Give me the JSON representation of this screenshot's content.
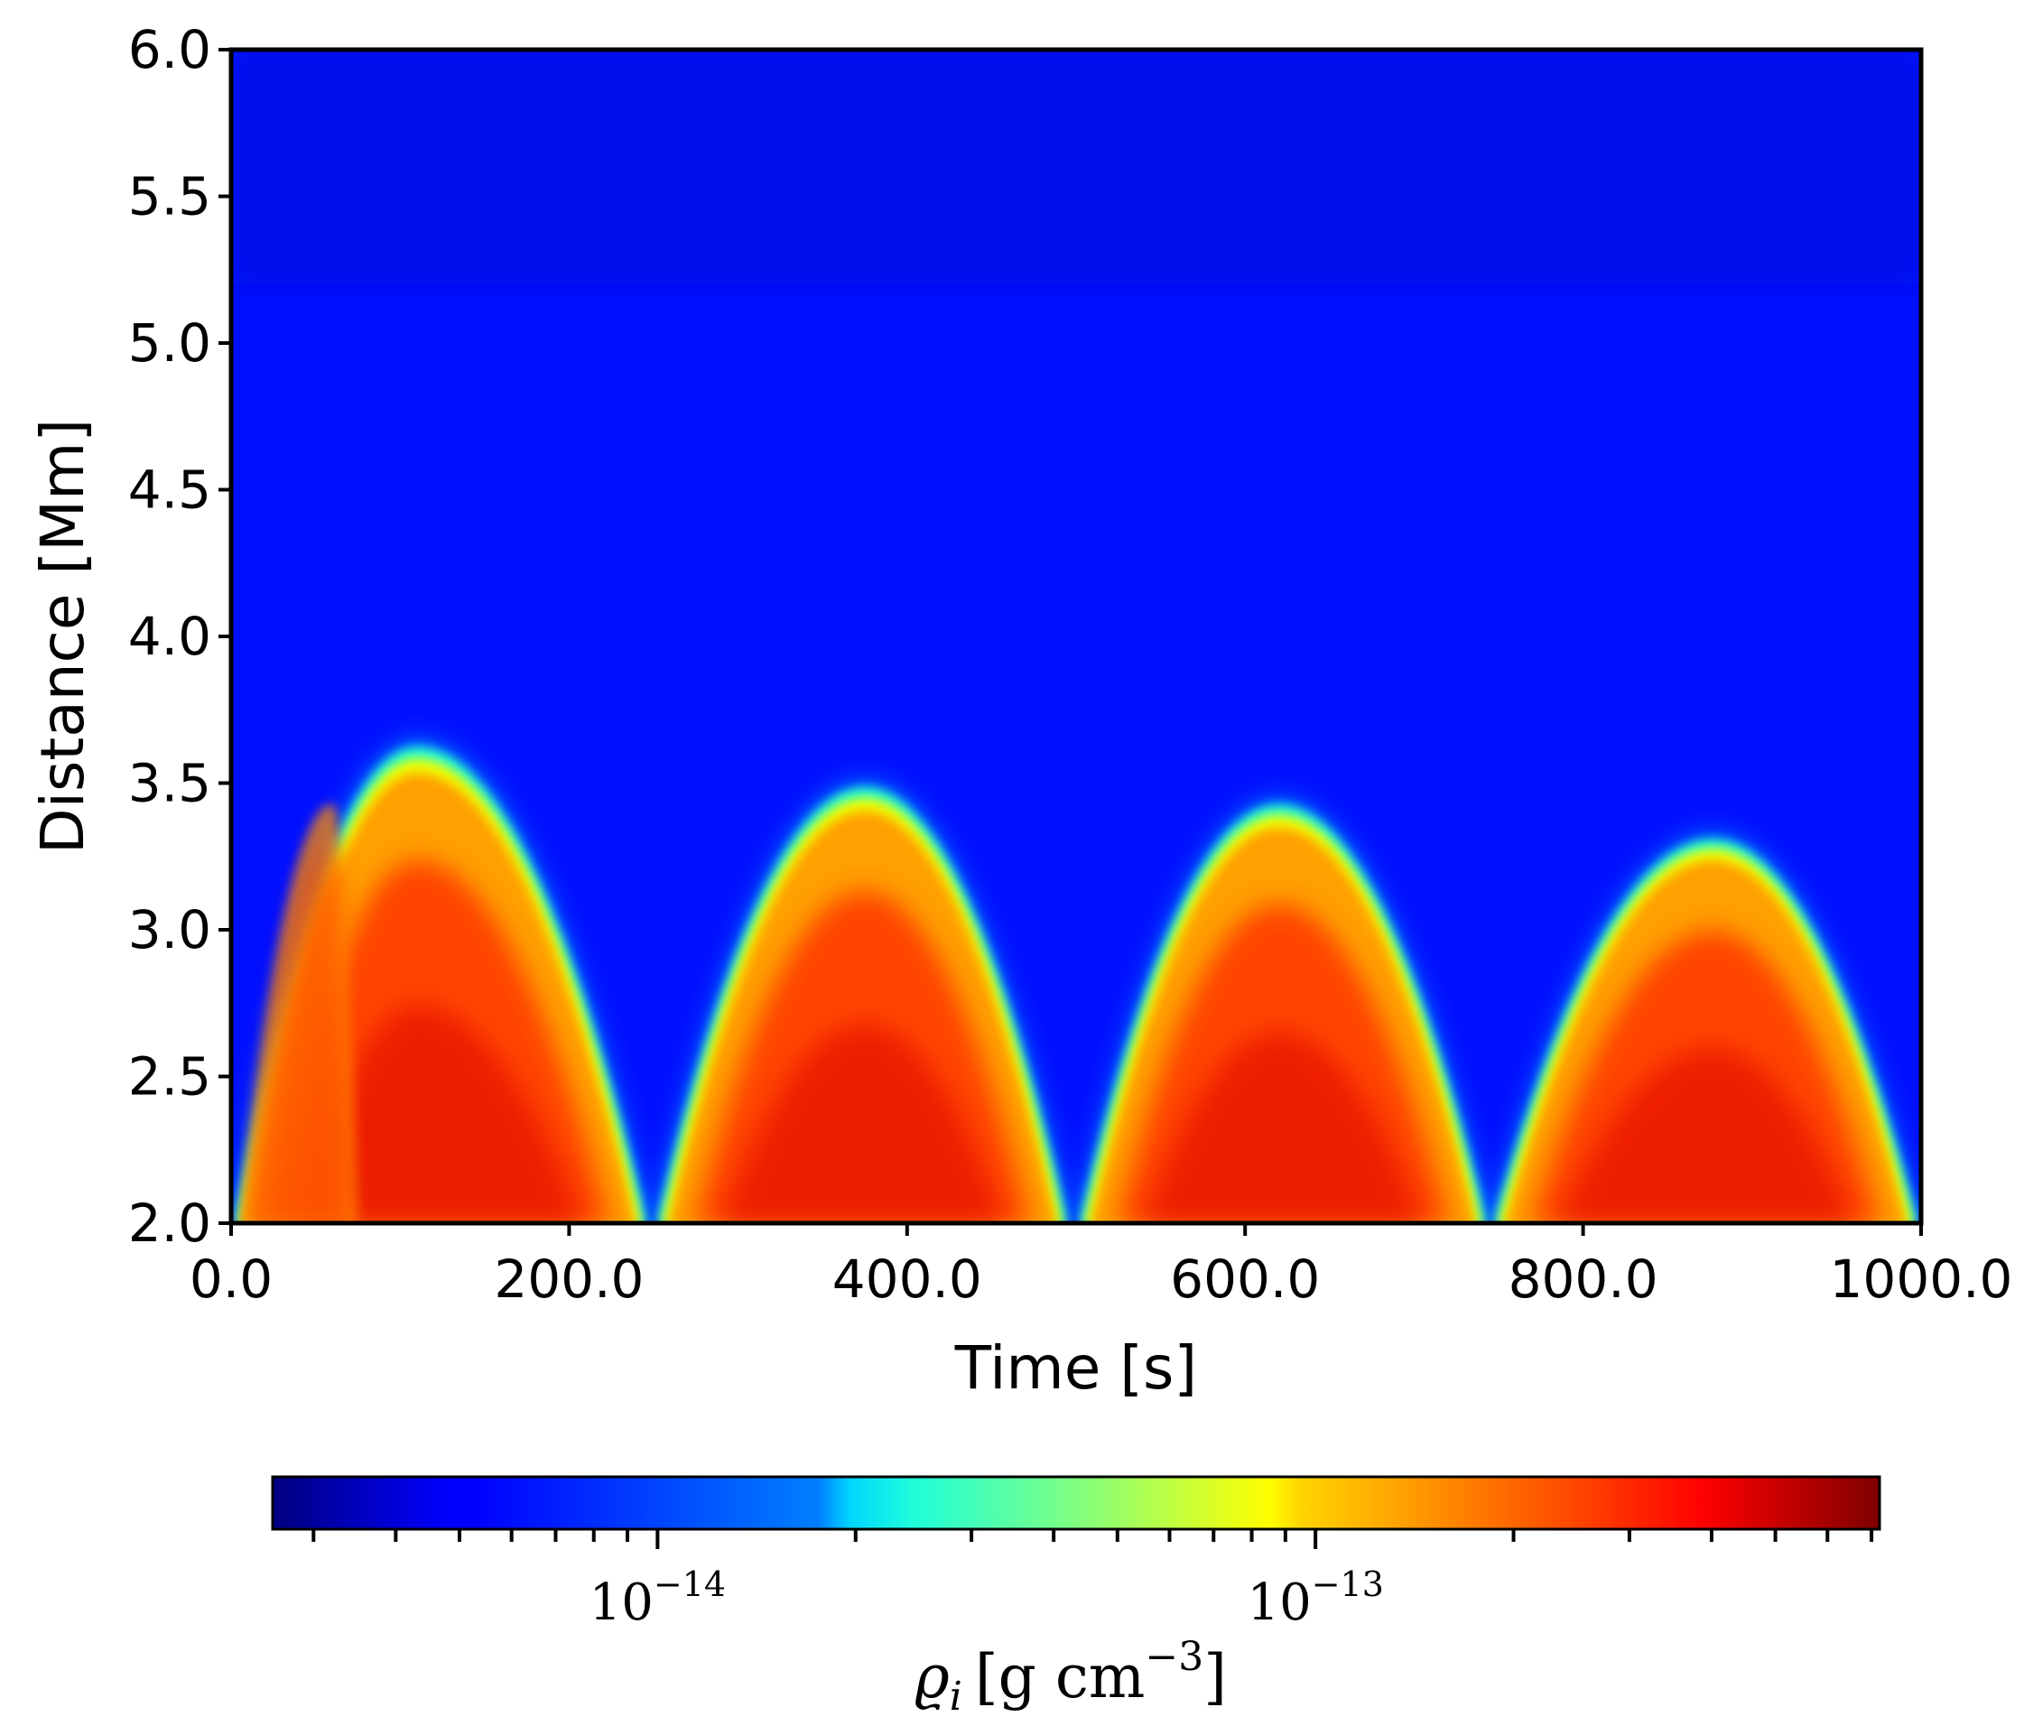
{
  "chart_data": {
    "type": "heatmap",
    "xlabel": "Time [s]",
    "ylabel": "Distance [Mm]",
    "xlim": [
      0,
      1000
    ],
    "ylim": [
      2.0,
      6.0
    ],
    "xticks": [
      0,
      200,
      400,
      600,
      800,
      1000
    ],
    "xtick_labels": [
      "0.0",
      "200.0",
      "400.0",
      "600.0",
      "800.0",
      "1000.0"
    ],
    "yticks": [
      2.0,
      2.5,
      3.0,
      3.5,
      4.0,
      4.5,
      5.0,
      5.5,
      6.0
    ],
    "ytick_labels": [
      "2.0",
      "2.5",
      "3.0",
      "3.5",
      "4.0",
      "4.5",
      "5.0",
      "5.5",
      "6.0"
    ],
    "colormap": "jet",
    "colorbar": {
      "scale": "log",
      "range": [
        2.6e-15,
        7.2e-13
      ],
      "major_ticks": [
        1e-14,
        1e-13
      ],
      "major_labels": [
        {
          "base": "10",
          "exp": "−14"
        },
        {
          "base": "10",
          "exp": "−13"
        }
      ],
      "label": {
        "symbol": "ϱ",
        "subscript": "i",
        "unit": "[g cm",
        "unit_exp": "−3",
        "unit_close": "]"
      },
      "orientation": "horizontal",
      "placement": "below"
    },
    "arches": [
      {
        "t_start": 0,
        "t_end": 248,
        "t_peak": 110,
        "peak_height": 3.65
      },
      {
        "t_start": 250,
        "t_end": 497,
        "t_peak": 375,
        "peak_height": 3.51
      },
      {
        "t_start": 500,
        "t_end": 745,
        "t_peak": 620,
        "peak_height": 3.45
      },
      {
        "t_start": 745,
        "t_end": 1000,
        "t_peak": 877,
        "peak_height": 3.33
      }
    ],
    "secondary_arch": {
      "t_start": 5,
      "t_end": 75,
      "t_peak": 60,
      "peak_height": 3.43
    },
    "background_density": "low"
  }
}
